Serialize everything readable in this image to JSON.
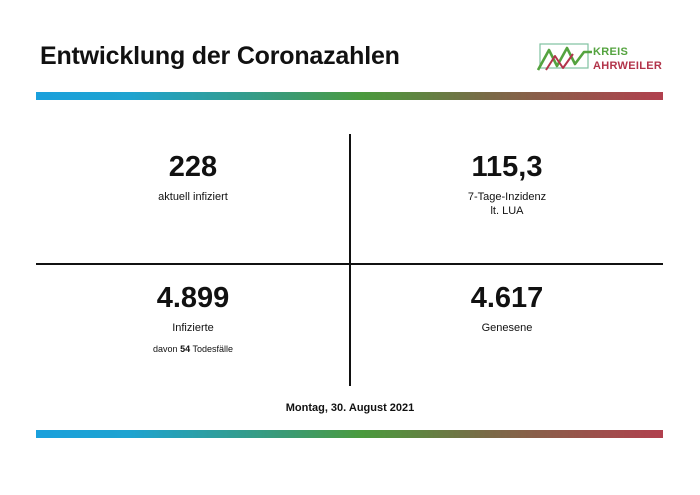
{
  "header": {
    "title": "Entwicklung der Coronazahlen",
    "logo_line1": "KREIS",
    "logo_line2": "AHRWEILER"
  },
  "stats": {
    "active": {
      "value": "228",
      "label": "aktuell infiziert"
    },
    "incidence": {
      "value": "115,3",
      "label_line1": "7-Tage-Inzidenz",
      "label_line2": "lt. LUA"
    },
    "infected": {
      "value": "4.899",
      "label": "Infizierte",
      "deaths_prefix": "davon",
      "deaths_value": "54",
      "deaths_suffix": "Todesfälle"
    },
    "recovered": {
      "value": "4.617",
      "label": "Genesene"
    }
  },
  "footer": {
    "date": "Montag, 30. August 2021"
  },
  "colors": {
    "gradient": [
      "#1aa0dc",
      "#4a9a3d",
      "#b1404e"
    ],
    "logo_green": "#54a33f",
    "logo_red": "#b2344a"
  }
}
